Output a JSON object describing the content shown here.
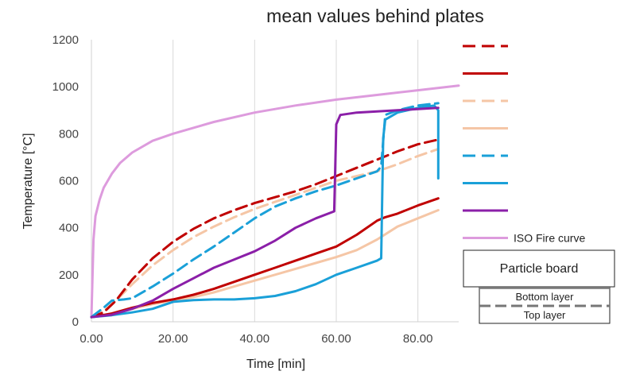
{
  "chart_data": {
    "type": "line",
    "title": "mean values behind plates",
    "xlabel": "Time [min]",
    "ylabel": "Temperature [°C]",
    "xlim": [
      0,
      90
    ],
    "ylim": [
      0,
      1200
    ],
    "x_ticks": [
      "0.00",
      "20.00",
      "40.00",
      "60.00",
      "80.00"
    ],
    "x_tick_values": [
      0,
      20,
      40,
      60,
      80
    ],
    "y_ticks": [
      "0",
      "200",
      "400",
      "600",
      "800",
      "1000",
      "1200"
    ],
    "y_tick_values": [
      0,
      200,
      400,
      600,
      800,
      1000,
      1200
    ],
    "grid": "vertical",
    "legend_position": "right",
    "series": [
      {
        "color": "#c00000",
        "dash": true,
        "x": [
          0,
          3,
          6,
          10,
          15,
          20,
          25,
          30,
          35,
          40,
          45,
          50,
          55,
          60,
          65,
          70,
          75,
          80,
          85
        ],
        "y": [
          20,
          40,
          90,
          180,
          270,
          340,
          395,
          440,
          475,
          505,
          530,
          555,
          585,
          620,
          655,
          690,
          725,
          755,
          775
        ]
      },
      {
        "color": "#c00000",
        "dash": false,
        "x": [
          0,
          5,
          10,
          15,
          20,
          25,
          30,
          35,
          40,
          45,
          50,
          55,
          60,
          65,
          70,
          72,
          75,
          80,
          85
        ],
        "y": [
          20,
          35,
          60,
          80,
          95,
          115,
          140,
          170,
          200,
          230,
          260,
          290,
          320,
          370,
          430,
          445,
          460,
          495,
          525
        ]
      },
      {
        "color": "#f5c6a6",
        "dash": true,
        "x": [
          0,
          3,
          6,
          10,
          15,
          20,
          25,
          30,
          35,
          40,
          45,
          50,
          55,
          60,
          65,
          70,
          75,
          80,
          85
        ],
        "y": [
          20,
          45,
          90,
          160,
          240,
          305,
          360,
          405,
          445,
          480,
          510,
          540,
          570,
          600,
          620,
          640,
          670,
          705,
          735
        ]
      },
      {
        "color": "#f5c6a6",
        "dash": false,
        "x": [
          0,
          5,
          10,
          15,
          20,
          25,
          30,
          35,
          40,
          45,
          50,
          55,
          60,
          65,
          70,
          75,
          80,
          85
        ],
        "y": [
          20,
          35,
          55,
          75,
          90,
          105,
          125,
          150,
          175,
          200,
          225,
          250,
          275,
          305,
          350,
          405,
          440,
          475
        ]
      },
      {
        "color": "#1aa0d8",
        "dash": true,
        "x": [
          0,
          3,
          5,
          8,
          10,
          15,
          20,
          25,
          30,
          35,
          40,
          45,
          50,
          55,
          60,
          65,
          70,
          71,
          72,
          75,
          80,
          85
        ],
        "y": [
          20,
          60,
          90,
          95,
          100,
          150,
          205,
          265,
          320,
          380,
          440,
          490,
          525,
          555,
          580,
          610,
          640,
          660,
          880,
          900,
          920,
          930
        ]
      },
      {
        "color": "#1aa0d8",
        "dash": false,
        "x": [
          0,
          5,
          10,
          15,
          20,
          25,
          30,
          35,
          40,
          45,
          50,
          55,
          60,
          65,
          70,
          71,
          71.5,
          72,
          75,
          80,
          84,
          85,
          85
        ],
        "y": [
          20,
          28,
          40,
          55,
          85,
          92,
          95,
          95,
          100,
          110,
          130,
          160,
          200,
          230,
          260,
          270,
          780,
          860,
          890,
          910,
          920,
          900,
          610
        ]
      },
      {
        "color": "#8b1fa8",
        "dash": false,
        "x": [
          0,
          5,
          10,
          15,
          20,
          25,
          30,
          35,
          40,
          45,
          50,
          55,
          59.5,
          60,
          61,
          65,
          70,
          75,
          80,
          85
        ],
        "y": [
          20,
          30,
          55,
          90,
          140,
          185,
          230,
          265,
          300,
          345,
          400,
          440,
          470,
          840,
          880,
          890,
          895,
          900,
          905,
          910
        ]
      },
      {
        "name": "ISO Fire curve",
        "color": "#dd9bdd",
        "dash": false,
        "x": [
          0,
          0.5,
          1,
          2,
          3,
          5,
          7,
          10,
          15,
          20,
          30,
          40,
          50,
          60,
          70,
          80,
          90
        ],
        "y": [
          20,
          350,
          450,
          520,
          570,
          630,
          675,
          720,
          770,
          800,
          850,
          890,
          920,
          945,
          965,
          985,
          1005
        ]
      }
    ],
    "diagram": {
      "board_label": "Particle board",
      "bottom_label": "Bottom layer",
      "top_label": "Top layer"
    }
  }
}
